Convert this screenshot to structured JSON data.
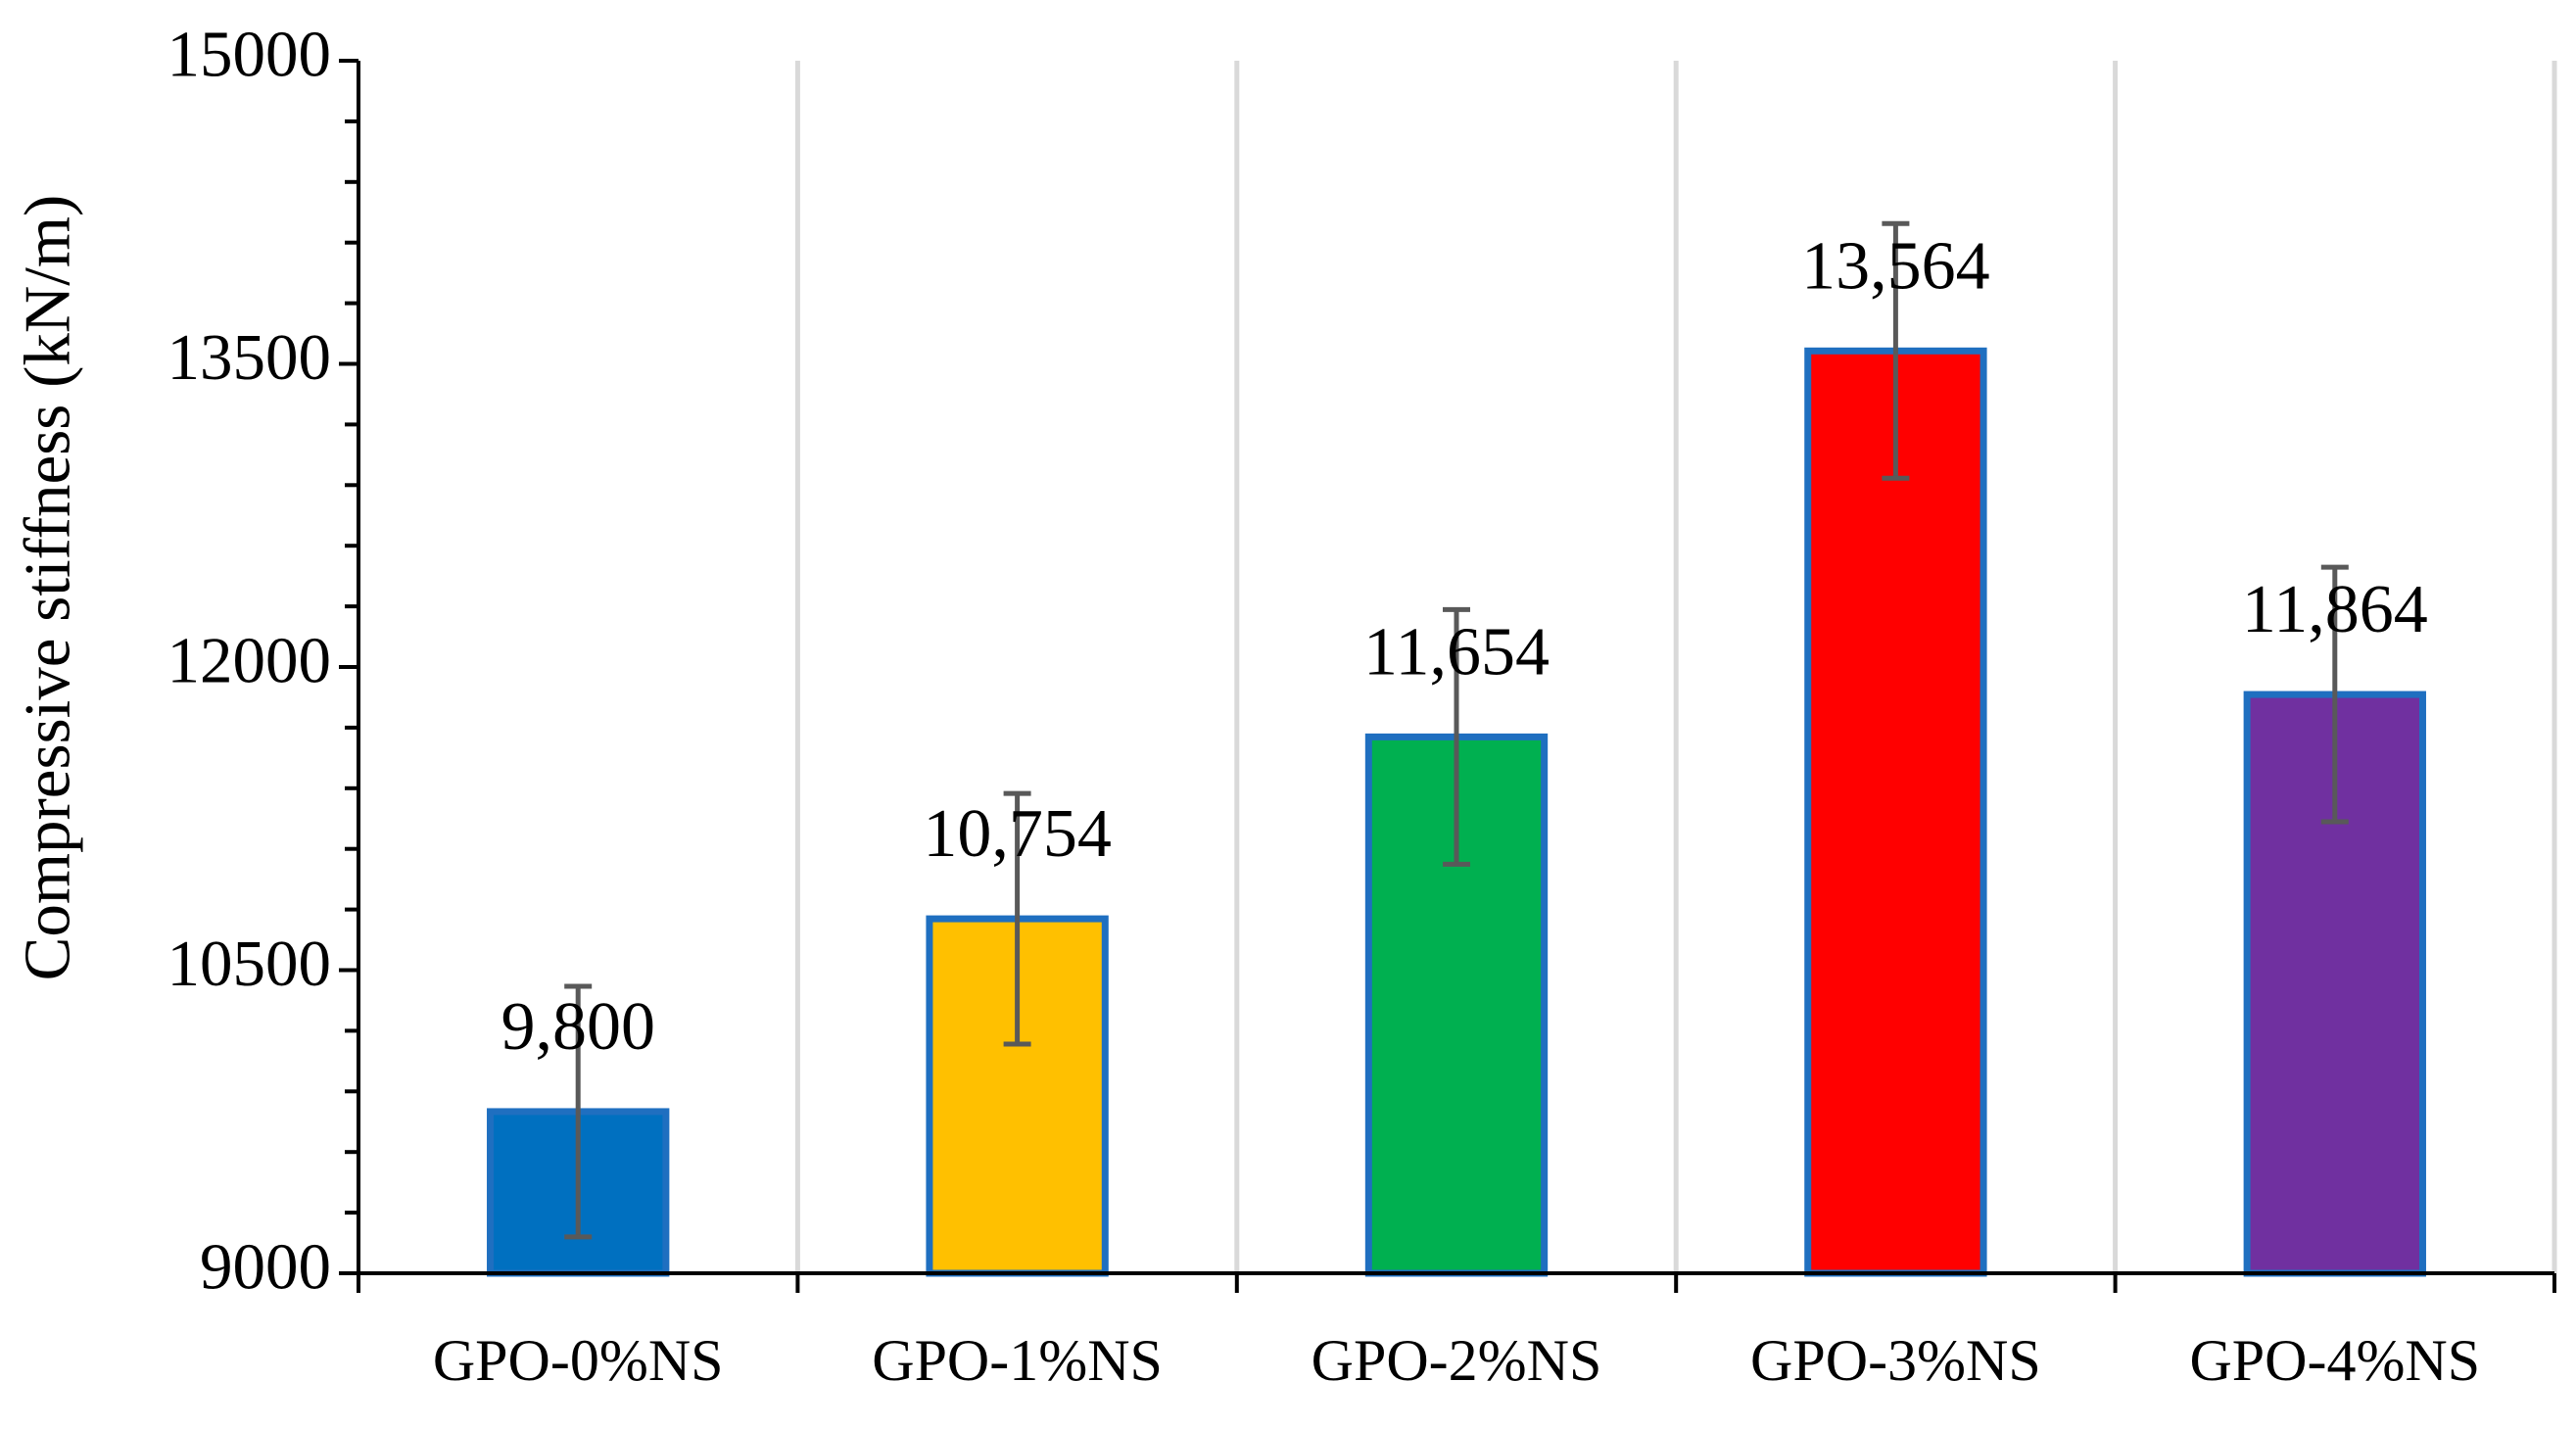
{
  "chart_data": {
    "type": "bar",
    "y_label": "Compressive stiffness (kN/m)",
    "categories": [
      "GPO-0%NS",
      "GPO-1%NS",
      "GPO-2%NS",
      "GPO-3%NS",
      "GPO-4%NS"
    ],
    "values": [
      9800,
      10754,
      11654,
      13564,
      11864
    ],
    "value_labels": [
      "9,800",
      "10,754",
      "11,654",
      "13,564",
      "11,864"
    ],
    "errors": [
      620,
      620,
      630,
      630,
      630
    ],
    "colors": [
      "#0070c0",
      "#ffc000",
      "#00b050",
      "#ff0000",
      "#7030a0"
    ],
    "edge_color": "#1f6fc0",
    "error_color": "#595959",
    "ylim": [
      9000,
      15000
    ],
    "yticks": [
      9000,
      10500,
      12000,
      13500,
      15000
    ],
    "yminor_ticks": [
      9300,
      9600,
      9900,
      10200,
      10800,
      11100,
      11400,
      11700,
      12300,
      12600,
      12900,
      13200,
      13800,
      14100,
      14400,
      14700
    ],
    "grid": true
  }
}
